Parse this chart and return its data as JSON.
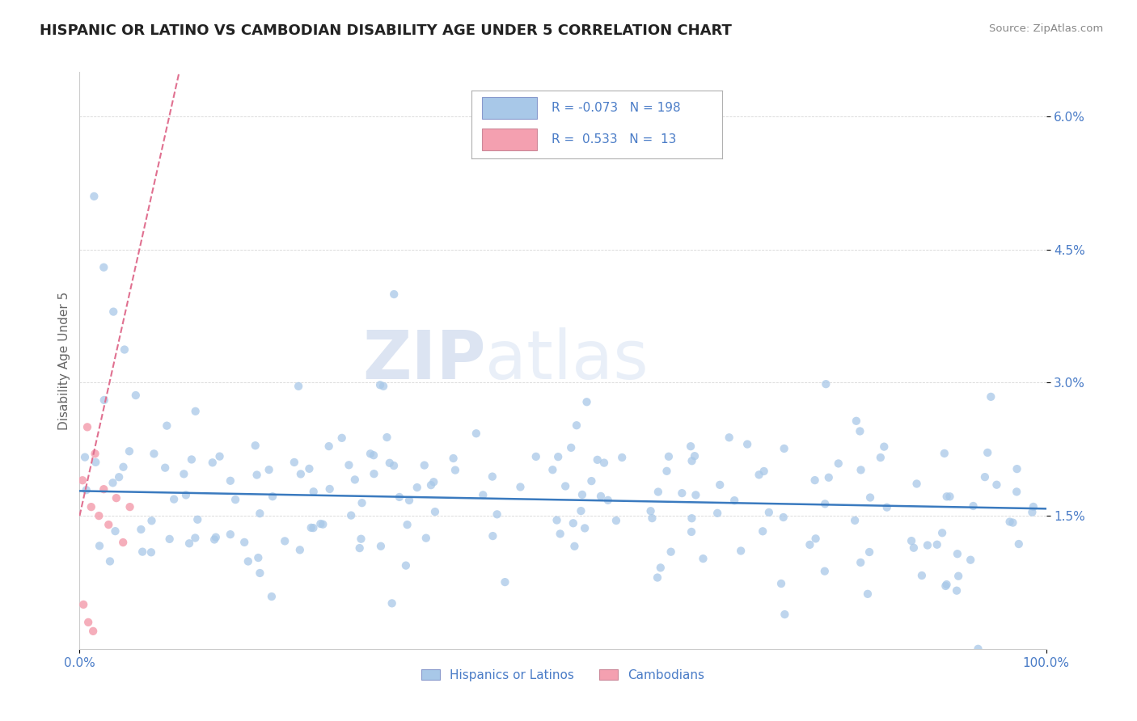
{
  "title": "HISPANIC OR LATINO VS CAMBODIAN DISABILITY AGE UNDER 5 CORRELATION CHART",
  "source": "Source: ZipAtlas.com",
  "ylabel": "Disability Age Under 5",
  "xlim": [
    0.0,
    100.0
  ],
  "ylim": [
    0.0,
    6.5
  ],
  "ytick_vals": [
    1.5,
    3.0,
    4.5,
    6.0
  ],
  "xtick_vals": [
    0.0,
    100.0
  ],
  "legend_labels": [
    "Hispanics or Latinos",
    "Cambodians"
  ],
  "blue_dot_color": "#a8c8e8",
  "pink_dot_color": "#f4a0b0",
  "trend_blue_color": "#3a7abf",
  "trend_pink_color": "#e07090",
  "legend_blue_fill": "#a8c8e8",
  "legend_pink_fill": "#f4a0b0",
  "R_blue": -0.073,
  "N_blue": 198,
  "R_pink": 0.533,
  "N_pink": 13,
  "watermark_zip": "ZIP",
  "watermark_atlas": "atlas",
  "axis_label_color": "#4a7cc7",
  "tick_color": "#4a7cc7",
  "grid_color": "#cccccc",
  "background_color": "#ffffff",
  "title_fontsize": 13,
  "seed_blue": 42,
  "seed_pink": 99
}
